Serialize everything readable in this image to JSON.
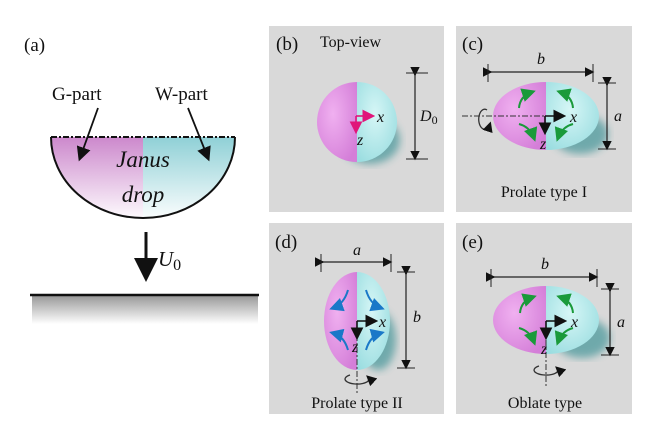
{
  "panel_a": {
    "label": "(a)",
    "g_part": "G-part",
    "w_part": "W-part",
    "drop_line1": "Janus",
    "drop_line2": "drop",
    "velocity": "U",
    "velocity_sub": "0"
  },
  "panel_b": {
    "label": "(b)",
    "title": "Top-view",
    "dim": "D",
    "dim_sub": "0",
    "axis_x": "x",
    "axis_z": "z"
  },
  "panel_c": {
    "label": "(c)",
    "caption": "Prolate type I",
    "dim_h": "b",
    "dim_v": "a",
    "axis_x": "x",
    "axis_z": "z"
  },
  "panel_d": {
    "label": "(d)",
    "caption": "Prolate type II",
    "dim_h": "a",
    "dim_v": "b",
    "axis_x": "x",
    "axis_z": "z"
  },
  "panel_e": {
    "label": "(e)",
    "caption": "Oblate type",
    "dim_h": "b",
    "dim_v": "a",
    "axis_x": "x",
    "axis_z": "z"
  },
  "colors": {
    "g_part": "#e68ae6",
    "w_part": "#a8e6e8",
    "panel_bg": "#d9d9d9",
    "flow_green": "#1a9a3a",
    "flow_blue": "#1a78c8",
    "axis_magenta": "#e0157a"
  }
}
